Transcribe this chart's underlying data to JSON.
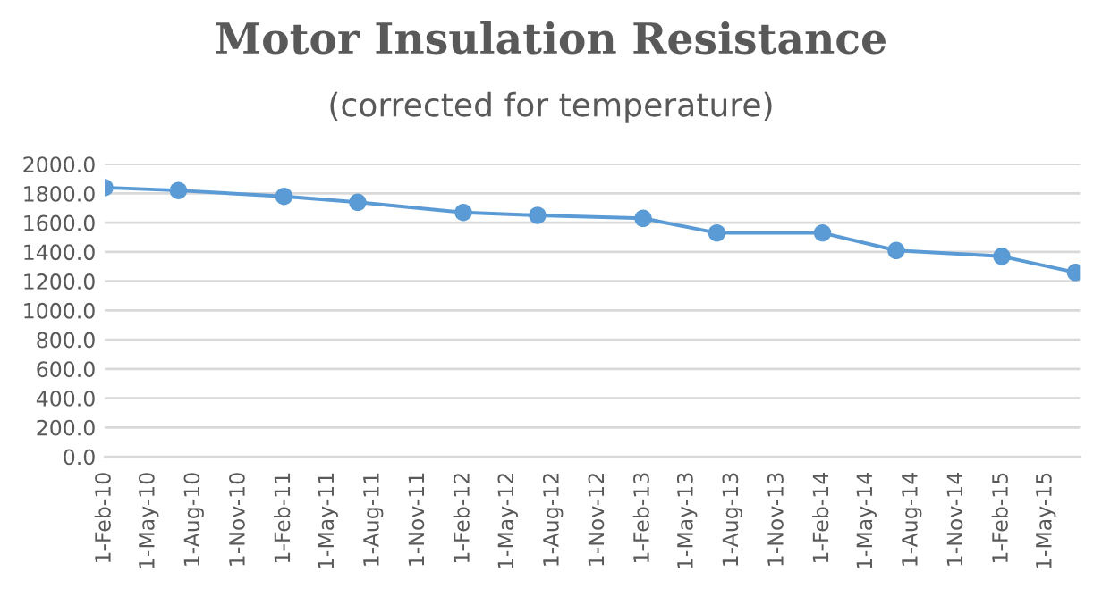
{
  "chart_data": {
    "type": "line",
    "title": "Motor Insulation Resistance",
    "subtitle": "(corrected for temperature)",
    "x": [
      "2010-02-01",
      "2010-07-01",
      "2011-02-01",
      "2011-07-01",
      "2012-02-01",
      "2012-07-01",
      "2013-02-01",
      "2013-07-01",
      "2014-02-01",
      "2014-07-01",
      "2015-02-01",
      "2015-07-01"
    ],
    "series": [
      {
        "color": "#5b9bd5",
        "values": [
          1840,
          1820,
          1780,
          1740,
          1670,
          1650,
          1630,
          1530,
          1530,
          1410,
          1370,
          1260
        ]
      }
    ],
    "xlim": [
      "2010-02-01",
      "2015-07-10"
    ],
    "xticks": [
      {
        "value": "2010-02-01",
        "label": "1-Feb-10"
      },
      {
        "value": "2010-05-01",
        "label": "1-May-10"
      },
      {
        "value": "2010-08-01",
        "label": "1-Aug-10"
      },
      {
        "value": "2010-11-01",
        "label": "1-Nov-10"
      },
      {
        "value": "2011-02-01",
        "label": "1-Feb-11"
      },
      {
        "value": "2011-05-01",
        "label": "1-May-11"
      },
      {
        "value": "2011-08-01",
        "label": "1-Aug-11"
      },
      {
        "value": "2011-11-01",
        "label": "1-Nov-11"
      },
      {
        "value": "2012-02-01",
        "label": "1-Feb-12"
      },
      {
        "value": "2012-05-01",
        "label": "1-May-12"
      },
      {
        "value": "2012-08-01",
        "label": "1-Aug-12"
      },
      {
        "value": "2012-11-01",
        "label": "1-Nov-12"
      },
      {
        "value": "2013-02-01",
        "label": "1-Feb-13"
      },
      {
        "value": "2013-05-01",
        "label": "1-May-13"
      },
      {
        "value": "2013-08-01",
        "label": "1-Aug-13"
      },
      {
        "value": "2013-11-01",
        "label": "1-Nov-13"
      },
      {
        "value": "2014-02-01",
        "label": "1-Feb-14"
      },
      {
        "value": "2014-05-01",
        "label": "1-May-14"
      },
      {
        "value": "2014-08-01",
        "label": "1-Aug-14"
      },
      {
        "value": "2014-11-01",
        "label": "1-Nov-14"
      },
      {
        "value": "2015-02-01",
        "label": "1-Feb-15"
      },
      {
        "value": "2015-05-01",
        "label": "1-May-15"
      }
    ],
    "ylim": [
      0,
      2000
    ],
    "yticks": [
      {
        "value": 0,
        "label": "0.0"
      },
      {
        "value": 200,
        "label": "200.0"
      },
      {
        "value": 400,
        "label": "400.0"
      },
      {
        "value": 600,
        "label": "600.0"
      },
      {
        "value": 800,
        "label": "800.0"
      },
      {
        "value": 1000,
        "label": "1000.0"
      },
      {
        "value": 1200,
        "label": "1200.0"
      },
      {
        "value": 1400,
        "label": "1400.0"
      },
      {
        "value": 1600,
        "label": "1600.0"
      },
      {
        "value": 1800,
        "label": "1800.0"
      },
      {
        "value": 2000,
        "label": "2000.0"
      }
    ],
    "grid": "y",
    "marker": "circle",
    "line_style": "solid",
    "legend": false
  }
}
